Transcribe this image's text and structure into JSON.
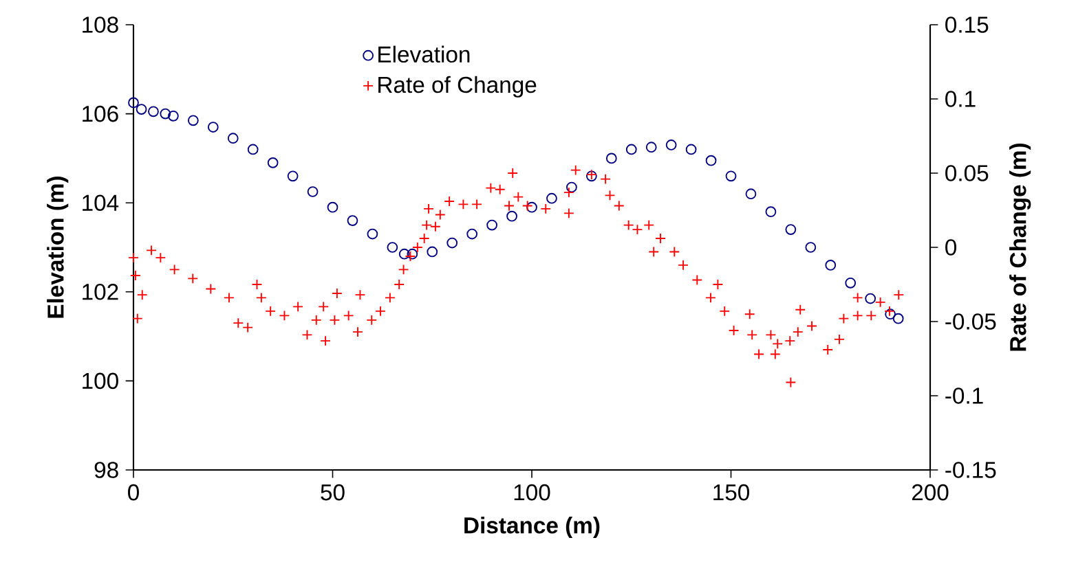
{
  "chart_data": {
    "type": "scatter",
    "xlabel": "Distance (m)",
    "ylabel": "Elevation (m)",
    "y2label": "Rate of Change (m)",
    "xlim": [
      0,
      200
    ],
    "xticks": [
      0,
      50,
      100,
      150,
      200
    ],
    "ylim": [
      98,
      108
    ],
    "yticks": [
      98,
      100,
      102,
      104,
      106,
      108
    ],
    "y2lim": [
      -0.15,
      0.15
    ],
    "y2ticks": [
      -0.15,
      -0.1,
      -0.05,
      0,
      0.05,
      0.1,
      0.15
    ],
    "grid": false,
    "legend": "top",
    "series": [
      {
        "name": "Elevation",
        "color": "#000080",
        "marker": "circle",
        "x": [
          0,
          2,
          5,
          8,
          10,
          15,
          20,
          25,
          30,
          35,
          40,
          45,
          50,
          55,
          60,
          65,
          68,
          70,
          75,
          80,
          85,
          90,
          95,
          100,
          105,
          110,
          115,
          120,
          125,
          130,
          135,
          140,
          145,
          150,
          155,
          160,
          165,
          170,
          175,
          180,
          185,
          190,
          192
        ],
        "values": [
          106.25,
          106.1,
          106.05,
          106.0,
          105.95,
          105.85,
          105.7,
          105.45,
          105.2,
          104.9,
          104.6,
          104.25,
          103.9,
          103.6,
          103.3,
          103.0,
          102.85,
          102.85,
          102.9,
          103.1,
          103.3,
          103.5,
          103.7,
          103.9,
          104.1,
          104.35,
          104.6,
          105.0,
          105.2,
          105.25,
          105.3,
          105.2,
          104.95,
          104.6,
          104.2,
          103.8,
          103.4,
          103.0,
          102.6,
          102.2,
          101.85,
          101.5,
          101.4
        ]
      },
      {
        "name": "Rate of Change",
        "color": "#ff0000",
        "marker": "cross",
        "axis": "y2",
        "x": [
          0,
          0.5,
          1,
          2.2,
          4.5,
          6.8,
          10.3,
          14.9,
          19.4,
          24,
          26.3,
          28.7,
          31,
          32.1,
          34.4,
          37.9,
          41.3,
          43.6,
          45.9,
          48.2,
          47.7,
          51.1,
          50.5,
          54,
          56.3,
          56.9,
          59.8,
          62,
          64.4,
          66.7,
          67.8,
          69.5,
          71.3,
          73,
          73.6,
          74.1,
          75.8,
          77,
          79.3,
          82.8,
          86.2,
          89.7,
          92,
          95.2,
          94.3,
          96.6,
          98.9,
          103.5,
          109.3,
          109.3,
          111,
          115,
          118.5,
          119.6,
          121.9,
          124.3,
          126.5,
          129.4,
          130.6,
          132.3,
          135.8,
          138,
          141.5,
          146.7,
          144.9,
          148.4,
          150.7,
          154.7,
          155.3,
          157,
          160,
          161.7,
          161.1,
          165,
          164.8,
          166.8,
          167.4,
          170.3,
          174.3,
          177.2,
          178.3,
          181.8,
          181.8,
          185.2,
          187.5,
          189.8,
          192.1
        ],
        "values": [
          -0.007,
          -0.019,
          -0.048,
          -0.032,
          -0.002,
          -0.007,
          -0.015,
          -0.021,
          -0.028,
          -0.034,
          -0.051,
          -0.054,
          -0.025,
          -0.034,
          -0.043,
          -0.046,
          -0.04,
          -0.059,
          -0.049,
          -0.063,
          -0.04,
          -0.031,
          -0.049,
          -0.046,
          -0.057,
          -0.032,
          -0.049,
          -0.043,
          -0.034,
          -0.025,
          -0.015,
          -0.006,
          0.0,
          0.006,
          0.015,
          0.026,
          0.014,
          0.022,
          0.031,
          0.029,
          0.029,
          0.04,
          0.039,
          0.05,
          0.028,
          0.034,
          0.028,
          0.026,
          0.023,
          0.037,
          0.052,
          0.049,
          0.046,
          0.035,
          0.028,
          0.015,
          0.012,
          0.015,
          -0.003,
          0.006,
          -0.003,
          -0.012,
          -0.022,
          -0.025,
          -0.034,
          -0.043,
          -0.056,
          -0.045,
          -0.059,
          -0.072,
          -0.059,
          -0.065,
          -0.072,
          -0.091,
          -0.063,
          -0.057,
          -0.042,
          -0.053,
          -0.069,
          -0.062,
          -0.048,
          -0.046,
          -0.034,
          -0.046,
          -0.037,
          -0.043,
          -0.032
        ]
      }
    ]
  }
}
